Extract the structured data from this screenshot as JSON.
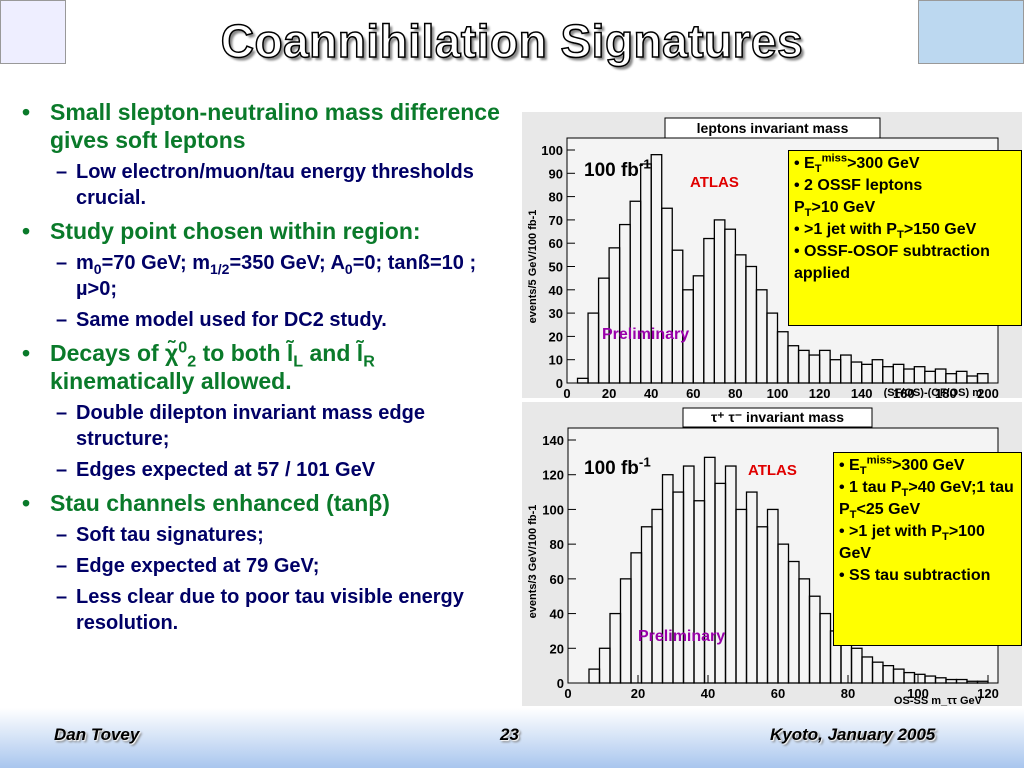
{
  "title": "Coannihilation Signatures",
  "bullets": [
    {
      "text": "Small slepton-neutralino mass difference gives soft leptons",
      "items": [
        "Low electron/muon/tau energy thresholds crucial."
      ]
    },
    {
      "text": "Study point chosen within region:",
      "items": [
        [
          "m",
          {
            "sub": "0"
          },
          "=70 GeV; m",
          {
            "sub": "1/2"
          },
          "=350 GeV; A",
          {
            "sub": "0"
          },
          "=0; tanß=10 ; µ>0;"
        ],
        "Same model used for DC2 study."
      ]
    },
    {
      "text": [
        "Decays of χ̃",
        {
          "sup": "0"
        },
        {
          "sub": "2"
        },
        " to both l̃",
        {
          "sub": "L"
        },
        " and l̃",
        {
          "sub": "R"
        },
        " kinematically allowed."
      ],
      "items": [
        "Double dilepton invariant mass edge structure;",
        "Edges expected at 57 / 101 GeV"
      ]
    },
    {
      "text": "Stau channels enhanced (tanβ)",
      "items": [
        "Soft tau signatures;",
        "Edge expected at 79 GeV;",
        "Less clear due to poor tau visible energy resolution."
      ]
    }
  ],
  "footer": {
    "left": "Dan Tovey",
    "center": "23",
    "right": "Kyoto, January 2005"
  },
  "chart_data": [
    {
      "type": "histogram",
      "title": "leptons invariant mass",
      "xlabel": "(SF/OS)-(OF/OS) m",
      "ylabel": "events/5 GeV/100 fb-1",
      "bins": [
        0,
        5,
        10,
        15,
        20,
        25,
        30,
        35,
        40,
        45,
        50,
        55,
        60,
        65,
        70,
        75,
        80,
        85,
        90,
        95,
        100,
        105,
        110,
        115,
        120,
        125,
        130,
        135,
        140,
        145,
        150,
        155,
        160,
        165,
        170,
        175,
        180,
        185,
        190,
        195,
        200
      ],
      "values": [
        0,
        2,
        30,
        45,
        58,
        68,
        78,
        94,
        98,
        75,
        57,
        40,
        46,
        62,
        70,
        66,
        55,
        50,
        40,
        30,
        22,
        16,
        14,
        12,
        14,
        10,
        12,
        9,
        8,
        10,
        7,
        8,
        6,
        7,
        5,
        6,
        4,
        5,
        3,
        4
      ],
      "color": "#000000",
      "xlim": [
        0,
        200
      ],
      "xticks": [
        0,
        20,
        40,
        60,
        80,
        100,
        120,
        140,
        160,
        180,
        200
      ],
      "ylim": [
        0,
        100
      ],
      "yticks": [
        0,
        10,
        20,
        30,
        40,
        50,
        60,
        70,
        80,
        90,
        100
      ],
      "lumi": [
        "100 fb",
        {
          "sup": "-1"
        }
      ],
      "experiment": "ATLAS",
      "status": "Preliminary",
      "info_box": [
        [
          "• E",
          {
            "sub": "T"
          },
          {
            "sup": "miss"
          },
          ">300 GeV"
        ],
        "• 2 OSSF leptons",
        [
          "P",
          {
            "sub": "T"
          },
          ">10 GeV"
        ],
        [
          "• >1 jet with P",
          {
            "sub": "T"
          },
          ">150 GeV"
        ],
        "• OSSF-OSOF subtraction applied"
      ]
    },
    {
      "type": "histogram",
      "title": "τ⁺ τ⁻ invariant mass",
      "xlabel": "OS-SS m_ττ GeV",
      "ylabel": "events/3 GeV/100 fb-1",
      "bins": [
        0,
        3,
        6,
        9,
        12,
        15,
        18,
        21,
        24,
        27,
        30,
        33,
        36,
        39,
        42,
        45,
        48,
        51,
        54,
        57,
        60,
        63,
        66,
        69,
        72,
        75,
        78,
        81,
        84,
        87,
        90,
        93,
        96,
        99,
        102,
        105,
        108,
        111,
        114,
        117,
        120
      ],
      "values": [
        0,
        0,
        8,
        20,
        40,
        60,
        75,
        90,
        100,
        120,
        110,
        125,
        105,
        130,
        115,
        125,
        100,
        110,
        90,
        100,
        80,
        70,
        60,
        50,
        40,
        30,
        25,
        20,
        15,
        12,
        10,
        8,
        6,
        5,
        4,
        3,
        2,
        2,
        1,
        1
      ],
      "color": "#000000",
      "xlim": [
        0,
        120
      ],
      "xticks": [
        0,
        20,
        40,
        60,
        80,
        100,
        120
      ],
      "ylim": [
        0,
        140
      ],
      "yticks": [
        0,
        20,
        40,
        60,
        80,
        100,
        120,
        140
      ],
      "lumi": [
        "100 fb",
        {
          "sup": "-1"
        }
      ],
      "experiment": "ATLAS",
      "status": "Preliminary",
      "info_box": [
        [
          "• E",
          {
            "sub": "T"
          },
          {
            "sup": "miss"
          },
          ">300 GeV"
        ],
        [
          "• 1 tau P",
          {
            "sub": "T"
          },
          ">40 GeV;1 tau P",
          {
            "sub": "T"
          },
          "<25 GeV"
        ],
        [
          "• >1 jet with P",
          {
            "sub": "T"
          },
          ">100 GeV"
        ],
        "• SS tau subtraction"
      ]
    }
  ]
}
